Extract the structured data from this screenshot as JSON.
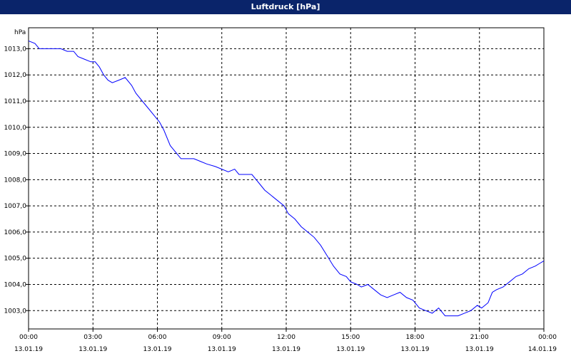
{
  "window": {
    "title": "Luftdruck [hPa]"
  },
  "chart_data": {
    "type": "line",
    "title": "Luftdruck [hPa]",
    "ylabel": "hPa",
    "xlabel": "",
    "grid": true,
    "ylim": [
      1002.3,
      1013.8
    ],
    "xlim": [
      0,
      24
    ],
    "y_ticks": [
      "1003,0",
      "1004,0",
      "1005,0",
      "1006,0",
      "1007,0",
      "1008,0",
      "1009,0",
      "1010,0",
      "1011,0",
      "1012,0",
      "1013,0"
    ],
    "x_ticks": [
      {
        "time": "00:00",
        "date": "13.01.19"
      },
      {
        "time": "03:00",
        "date": "13.01.19"
      },
      {
        "time": "06:00",
        "date": "13.01.19"
      },
      {
        "time": "09:00",
        "date": "13.01.19"
      },
      {
        "time": "12:00",
        "date": "13.01.19"
      },
      {
        "time": "15:00",
        "date": "13.01.19"
      },
      {
        "time": "18:00",
        "date": "13.01.19"
      },
      {
        "time": "21:00",
        "date": "13.01.19"
      },
      {
        "time": "00:00",
        "date": "14.01.19"
      }
    ],
    "series": [
      {
        "line_color": "#0000ff",
        "points": [
          [
            0.0,
            1013.3
          ],
          [
            0.3,
            1013.2
          ],
          [
            0.5,
            1013.0
          ],
          [
            1.0,
            1013.0
          ],
          [
            1.5,
            1013.0
          ],
          [
            1.8,
            1012.9
          ],
          [
            2.1,
            1012.9
          ],
          [
            2.3,
            1012.7
          ],
          [
            2.6,
            1012.6
          ],
          [
            2.9,
            1012.5
          ],
          [
            3.1,
            1012.5
          ],
          [
            3.3,
            1012.3
          ],
          [
            3.5,
            1012.0
          ],
          [
            3.7,
            1011.8
          ],
          [
            3.9,
            1011.7
          ],
          [
            4.2,
            1011.8
          ],
          [
            4.5,
            1011.9
          ],
          [
            4.8,
            1011.6
          ],
          [
            5.0,
            1011.3
          ],
          [
            5.3,
            1011.0
          ],
          [
            5.6,
            1010.7
          ],
          [
            5.9,
            1010.4
          ],
          [
            6.1,
            1010.2
          ],
          [
            6.3,
            1009.9
          ],
          [
            6.6,
            1009.3
          ],
          [
            6.9,
            1009.0
          ],
          [
            7.1,
            1008.8
          ],
          [
            7.4,
            1008.8
          ],
          [
            7.7,
            1008.8
          ],
          [
            8.0,
            1008.7
          ],
          [
            8.3,
            1008.6
          ],
          [
            8.7,
            1008.5
          ],
          [
            9.0,
            1008.4
          ],
          [
            9.3,
            1008.3
          ],
          [
            9.6,
            1008.4
          ],
          [
            9.8,
            1008.2
          ],
          [
            10.1,
            1008.2
          ],
          [
            10.4,
            1008.2
          ],
          [
            10.7,
            1007.9
          ],
          [
            11.0,
            1007.6
          ],
          [
            11.3,
            1007.4
          ],
          [
            11.6,
            1007.2
          ],
          [
            11.9,
            1007.0
          ],
          [
            12.1,
            1006.7
          ],
          [
            12.4,
            1006.5
          ],
          [
            12.7,
            1006.2
          ],
          [
            13.0,
            1006.0
          ],
          [
            13.3,
            1005.8
          ],
          [
            13.6,
            1005.5
          ],
          [
            13.9,
            1005.1
          ],
          [
            14.2,
            1004.7
          ],
          [
            14.5,
            1004.4
          ],
          [
            14.8,
            1004.3
          ],
          [
            15.0,
            1004.1
          ],
          [
            15.3,
            1004.0
          ],
          [
            15.5,
            1003.9
          ],
          [
            15.8,
            1004.0
          ],
          [
            16.1,
            1003.8
          ],
          [
            16.4,
            1003.6
          ],
          [
            16.7,
            1003.5
          ],
          [
            17.0,
            1003.6
          ],
          [
            17.3,
            1003.7
          ],
          [
            17.6,
            1003.5
          ],
          [
            17.9,
            1003.4
          ],
          [
            18.2,
            1003.1
          ],
          [
            18.5,
            1003.0
          ],
          [
            18.8,
            1002.9
          ],
          [
            19.1,
            1003.1
          ],
          [
            19.4,
            1002.8
          ],
          [
            19.7,
            1002.8
          ],
          [
            20.0,
            1002.8
          ],
          [
            20.3,
            1002.9
          ],
          [
            20.6,
            1003.0
          ],
          [
            20.9,
            1003.2
          ],
          [
            21.1,
            1003.1
          ],
          [
            21.4,
            1003.3
          ],
          [
            21.6,
            1003.7
          ],
          [
            21.8,
            1003.8
          ],
          [
            22.1,
            1003.9
          ],
          [
            22.4,
            1004.1
          ],
          [
            22.7,
            1004.3
          ],
          [
            23.0,
            1004.4
          ],
          [
            23.3,
            1004.6
          ],
          [
            23.6,
            1004.7
          ],
          [
            23.8,
            1004.8
          ],
          [
            24.0,
            1004.9
          ]
        ]
      }
    ]
  }
}
